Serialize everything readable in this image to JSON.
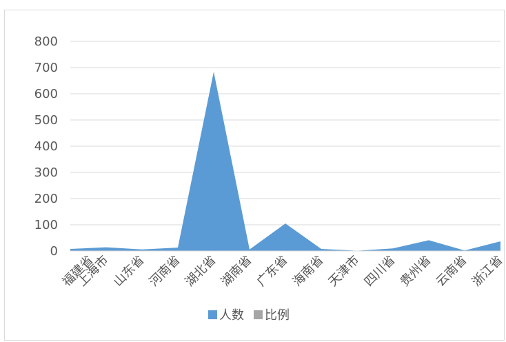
{
  "chart_data": {
    "type": "area",
    "categories": [
      "福建省",
      "上海市",
      "山东省",
      "河南省",
      "湖北省",
      "湖南省",
      "广东省",
      "海南省",
      "天津市",
      "四川省",
      "贵州省",
      "云南省",
      "浙江省"
    ],
    "series": [
      {
        "name": "人数",
        "values": [
          8,
          14,
          6,
          13,
          684,
          6,
          105,
          8,
          1,
          10,
          41,
          2,
          37
        ],
        "color": "#5b9bd5"
      },
      {
        "name": "比例",
        "values": [
          0,
          0,
          0,
          0,
          0,
          0,
          0,
          0,
          0,
          0,
          0,
          0,
          0
        ],
        "color": "#a5a5a5"
      }
    ],
    "yticks": [
      "0",
      "100",
      "200",
      "300",
      "400",
      "500",
      "600",
      "700",
      "800"
    ],
    "ylim": [
      0,
      800
    ],
    "grid": true,
    "legend_position": "bottom"
  }
}
